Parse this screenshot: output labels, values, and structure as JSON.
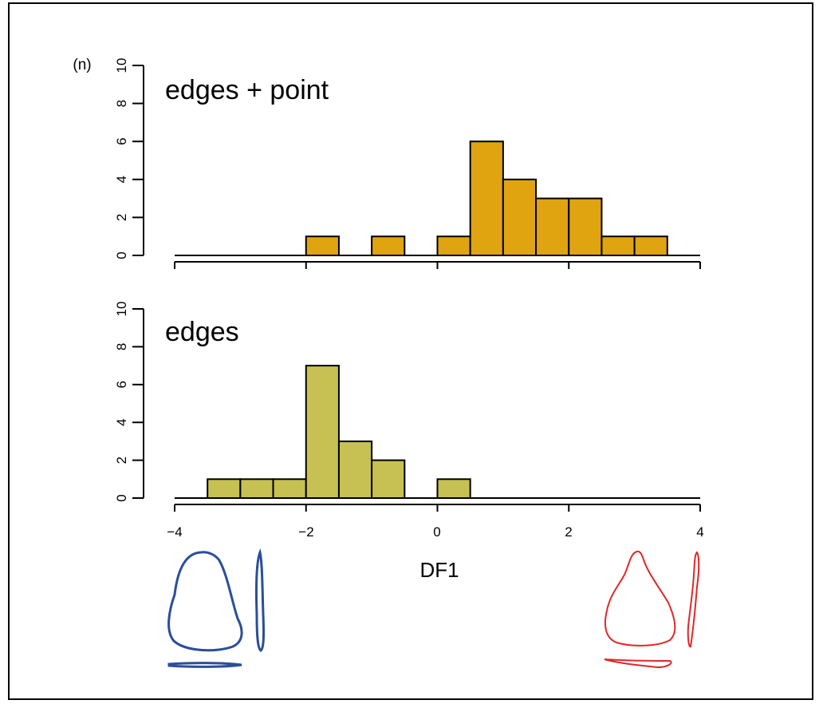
{
  "chart_data": [
    {
      "type": "bar",
      "title": "edges + point",
      "ylabel": "(n)",
      "xlabel": "",
      "color": "#DFA410",
      "bin_edges": [
        -2,
        -1.5,
        -1,
        -0.5,
        0,
        0.5,
        1,
        1.5,
        2,
        2.5,
        3,
        3.5
      ],
      "bins": [
        {
          "x0": -2.0,
          "x1": -1.5,
          "count": 1
        },
        {
          "x0": -1.0,
          "x1": -0.5,
          "count": 1
        },
        {
          "x0": 0.0,
          "x1": 0.5,
          "count": 1
        },
        {
          "x0": 0.5,
          "x1": 1.0,
          "count": 6
        },
        {
          "x0": 1.0,
          "x1": 1.5,
          "count": 4
        },
        {
          "x0": 1.5,
          "x1": 2.0,
          "count": 3
        },
        {
          "x0": 2.0,
          "x1": 2.5,
          "count": 3
        },
        {
          "x0": 2.5,
          "x1": 3.0,
          "count": 1
        },
        {
          "x0": 3.0,
          "x1": 3.5,
          "count": 1
        }
      ],
      "xlim": [
        -4,
        4
      ],
      "ylim": [
        0,
        10
      ],
      "yticks": [
        0,
        2,
        4,
        6,
        8,
        10
      ],
      "xticks": [
        -4,
        -2,
        0,
        2,
        4
      ],
      "xtick_labels_shown": false,
      "grid": false
    },
    {
      "type": "bar",
      "title": "edges",
      "ylabel": "",
      "xlabel": "DF1",
      "color": "#C6C152",
      "bins": [
        {
          "x0": -3.5,
          "x1": -3.0,
          "count": 1
        },
        {
          "x0": -3.0,
          "x1": -2.5,
          "count": 1
        },
        {
          "x0": -2.5,
          "x1": -2.0,
          "count": 1
        },
        {
          "x0": -2.0,
          "x1": -1.5,
          "count": 7
        },
        {
          "x0": -1.5,
          "x1": -1.0,
          "count": 3
        },
        {
          "x0": -1.0,
          "x1": -0.5,
          "count": 2
        },
        {
          "x0": 0.0,
          "x1": 0.5,
          "count": 1
        }
      ],
      "xlim": [
        -4,
        4
      ],
      "ylim": [
        0,
        10
      ],
      "yticks": [
        0,
        2,
        4,
        6,
        8,
        10
      ],
      "xticks": [
        -4,
        -2,
        0,
        2,
        4
      ],
      "xtick_labels_shown": true,
      "grid": false
    }
  ],
  "axis_labels": {
    "n_label": "(n)",
    "x_label": "DF1",
    "tick_minus_4": "−4",
    "tick_minus_2": "−2",
    "tick_0": "0",
    "tick_2": "2",
    "tick_4": "4"
  },
  "illustrations": {
    "left_outline_color": "#2A4E9B",
    "right_outline_color": "#E02828"
  }
}
